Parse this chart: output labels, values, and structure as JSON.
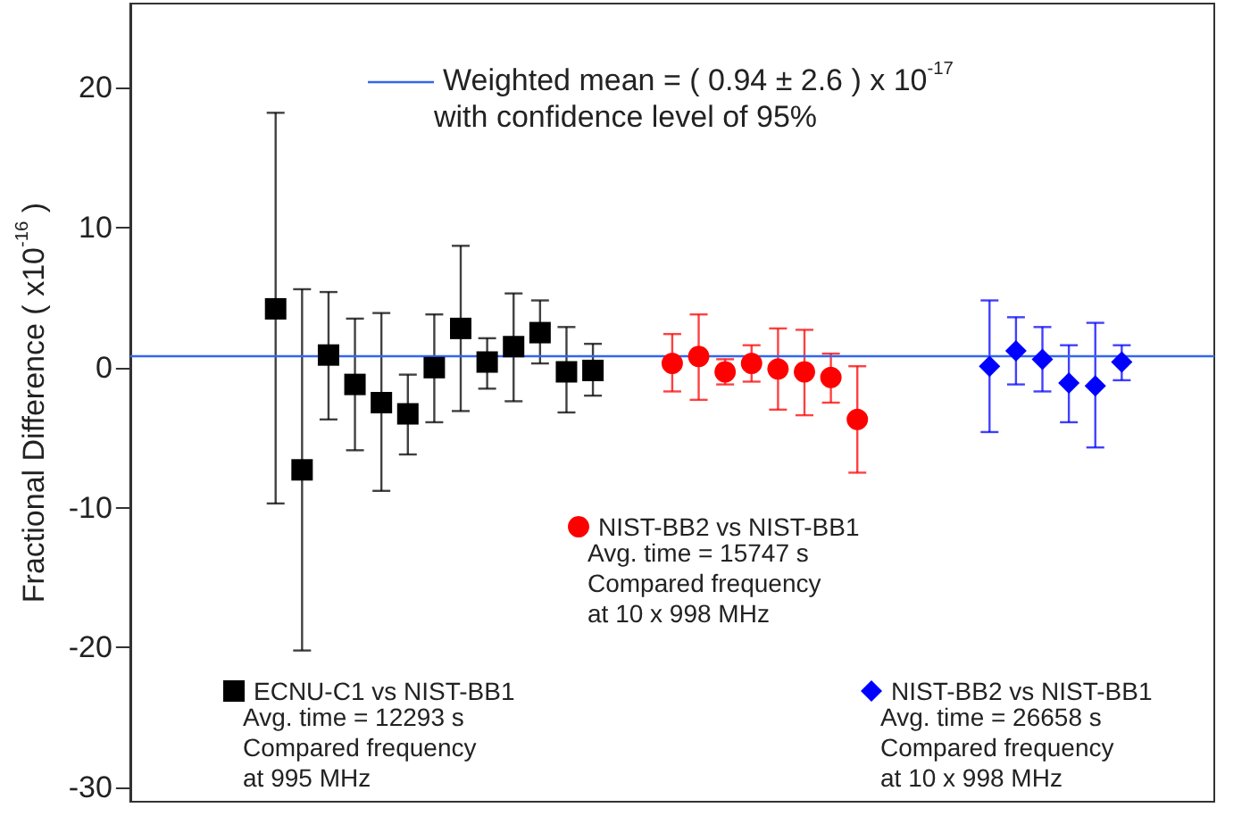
{
  "chart_data": {
    "type": "scatter",
    "ylabel": "Fractional Difference ( x10$^{-16}$ )",
    "categories": [
      null,
      null,
      null,
      null,
      null,
      null,
      null,
      null,
      null,
      null,
      null,
      null,
      null,
      null,
      null,
      null,
      null,
      null,
      null,
      null,
      null,
      null,
      null,
      null,
      null,
      null,
      null,
      null,
      null,
      null,
      null,
      null,
      null,
      null,
      null,
      null,
      null,
      null,
      null,
      null,
      null
    ],
    "ylim": [
      -31,
      26
    ],
    "yticks": [
      -30,
      -20,
      -10,
      0,
      10,
      20
    ],
    "grid": false,
    "legend": "bottom",
    "series": [
      {
        "name": "ECNU-C1 vs NIST-BB1",
        "color": "#000000",
        "marker": "square",
        "values": [
          null,
          null,
          null,
          null,
          null,
          4.2,
          -7.3,
          0.9,
          -1.2,
          -2.5,
          -3.3,
          0,
          2.8,
          0.4,
          1.5,
          2.5,
          -0.3,
          -0.2,
          null,
          null,
          null,
          null,
          null,
          null,
          null,
          null,
          null,
          null,
          null,
          null,
          null,
          null,
          null,
          null,
          null,
          null,
          null,
          null,
          null,
          null,
          null
        ],
        "errors": [
          null,
          null,
          null,
          null,
          null,
          [
            -9.7,
            18.2
          ],
          [
            -20.2,
            5.6
          ],
          [
            -3.7,
            5.4
          ],
          [
            -5.9,
            3.5
          ],
          [
            -8.8,
            3.9
          ],
          [
            -6.2,
            -0.5
          ],
          [
            -3.9,
            3.8
          ],
          [
            -3.1,
            8.7
          ],
          [
            -1.5,
            2.1
          ],
          [
            -2.4,
            5.3
          ],
          [
            0.3,
            4.8
          ],
          [
            -3.2,
            2.9
          ],
          [
            -2.0,
            1.7
          ],
          null,
          null,
          null,
          null,
          null,
          null,
          null,
          null,
          null,
          null,
          null,
          null,
          null,
          null,
          null,
          null,
          null,
          null,
          null,
          null,
          null,
          null,
          null
        ]
      },
      {
        "name": "NIST-BB2 vs NIST-BB1",
        "color": "#ff0000",
        "marker": "circle",
        "values": [
          null,
          null,
          null,
          null,
          null,
          null,
          null,
          null,
          null,
          null,
          null,
          null,
          null,
          null,
          null,
          null,
          null,
          null,
          null,
          null,
          0.3,
          0.8,
          -0.3,
          0.3,
          -0.1,
          -0.3,
          -0.7,
          -3.7,
          null,
          null,
          null,
          null,
          null,
          null,
          null,
          null,
          null,
          null,
          null,
          null,
          null
        ],
        "errors": [
          null,
          null,
          null,
          null,
          null,
          null,
          null,
          null,
          null,
          null,
          null,
          null,
          null,
          null,
          null,
          null,
          null,
          null,
          null,
          null,
          [
            -1.7,
            2.4
          ],
          [
            -2.3,
            3.8
          ],
          [
            -1.2,
            0.6
          ],
          [
            -1.0,
            1.6
          ],
          [
            -3.0,
            2.8
          ],
          [
            -3.4,
            2.7
          ],
          [
            -2.5,
            1.0
          ],
          [
            -7.5,
            0.1
          ],
          null,
          null,
          null,
          null,
          null,
          null,
          null,
          null,
          null,
          null,
          null,
          null,
          null
        ]
      },
      {
        "name": "NIST-BB2 vs NIST-BB1",
        "color": "#0000ff",
        "marker": "diamond",
        "values": [
          null,
          null,
          null,
          null,
          null,
          null,
          null,
          null,
          null,
          null,
          null,
          null,
          null,
          null,
          null,
          null,
          null,
          null,
          null,
          null,
          null,
          null,
          null,
          null,
          null,
          null,
          null,
          null,
          null,
          null,
          null,
          null,
          0.1,
          1.2,
          0.6,
          -1.1,
          -1.3,
          0.4,
          null,
          null,
          null
        ],
        "errors": [
          null,
          null,
          null,
          null,
          null,
          null,
          null,
          null,
          null,
          null,
          null,
          null,
          null,
          null,
          null,
          null,
          null,
          null,
          null,
          null,
          null,
          null,
          null,
          null,
          null,
          null,
          null,
          null,
          null,
          null,
          null,
          null,
          [
            -4.6,
            4.8
          ],
          [
            -1.2,
            3.6
          ],
          [
            -1.7,
            2.9
          ],
          [
            -3.9,
            1.6
          ],
          [
            -5.7,
            3.2
          ],
          [
            -0.9,
            1.6
          ],
          null,
          null,
          null
        ]
      }
    ],
    "ref_lines": [
      {
        "axis": "y",
        "value": 0.9,
        "label": "Weighted mean = ( 0.94 ± 2.6 ) x 10$^{-17}$\nwith confidence level of 95%",
        "color": "#3366ee"
      }
    ],
    "annotations": [
      "Avg. time = 12293 s\nCompared frequency\nat 995 MHz",
      "Avg. time = 15747 s\nCompared frequency\nat 10 x 998 MHz",
      "Avg. time = 26658 s\nCompared frequency\nat 10 x 998 MHz"
    ]
  }
}
